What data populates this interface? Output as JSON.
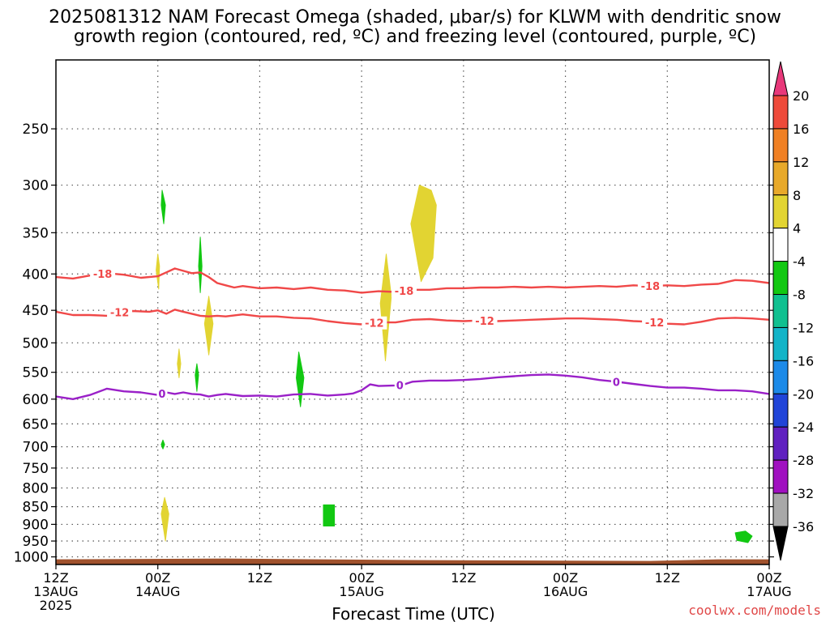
{
  "chart_data": {
    "type": "time-height cross section",
    "title_line1": "2025081312 NAM Forecast Omega (shaded, μbar/s) for KLWM with dendritic snow",
    "title_line2": "growth region (contoured, red, ºC) and freezing level (contoured, purple, ºC)",
    "xlabel": "Forecast Time (UTC)",
    "credit": "coolwx.com/models",
    "x_ticks": [
      {
        "hour": 0,
        "l1": "12Z",
        "l2": "13AUG",
        "l3": "2025"
      },
      {
        "hour": 12,
        "l1": "00Z",
        "l2": "14AUG",
        "l3": ""
      },
      {
        "hour": 24,
        "l1": "12Z",
        "l2": "",
        "l3": ""
      },
      {
        "hour": 36,
        "l1": "00Z",
        "l2": "15AUG",
        "l3": ""
      },
      {
        "hour": 48,
        "l1": "12Z",
        "l2": "",
        "l3": ""
      },
      {
        "hour": 60,
        "l1": "00Z",
        "l2": "16AUG",
        "l3": ""
      },
      {
        "hour": 72,
        "l1": "12Z",
        "l2": "",
        "l3": ""
      },
      {
        "hour": 84,
        "l1": "00Z",
        "l2": "17AUG",
        "l3": ""
      }
    ],
    "x_range_hours": [
      0,
      84
    ],
    "y_ticks_hpa": [
      250,
      300,
      350,
      400,
      450,
      500,
      550,
      600,
      650,
      700,
      750,
      800,
      850,
      900,
      950,
      1000
    ],
    "y_range_hpa": [
      1025,
      200
    ],
    "y_scale": "log-pressure",
    "grid": true,
    "colorbar": {
      "labels": [
        "20",
        "16",
        "12",
        "8",
        "4",
        "-4",
        "-8",
        "-12",
        "-16",
        "-20",
        "-24",
        "-28",
        "-32",
        "-36"
      ],
      "colors": [
        "#e8387a",
        "#ee4a3a",
        "#f08024",
        "#e8a92a",
        "#e2d432",
        "#ffffff",
        "#12c812",
        "#10c090",
        "#12b4c8",
        "#1c8ae8",
        "#2044d8",
        "#6020c0",
        "#a010c0",
        "#a8a8a8",
        "#000000"
      ]
    },
    "series": [
      {
        "name": "-18",
        "color": "#f04848",
        "label_at_hours": [
          5.5,
          41,
          70
        ],
        "points": [
          [
            0,
            404
          ],
          [
            2,
            406
          ],
          [
            4,
            402
          ],
          [
            6,
            399
          ],
          [
            8,
            401
          ],
          [
            10,
            405
          ],
          [
            12,
            403
          ],
          [
            13,
            398
          ],
          [
            14,
            393
          ],
          [
            15,
            396
          ],
          [
            16,
            399
          ],
          [
            17,
            398
          ],
          [
            18,
            404
          ],
          [
            19,
            412
          ],
          [
            20,
            415
          ],
          [
            21,
            418
          ],
          [
            22,
            416
          ],
          [
            24,
            419
          ],
          [
            26,
            418
          ],
          [
            28,
            420
          ],
          [
            30,
            418
          ],
          [
            32,
            421
          ],
          [
            34,
            422
          ],
          [
            36,
            425
          ],
          [
            38,
            423
          ],
          [
            40,
            424
          ],
          [
            42,
            421
          ],
          [
            44,
            421
          ],
          [
            46,
            419
          ],
          [
            48,
            419
          ],
          [
            50,
            418
          ],
          [
            52,
            418
          ],
          [
            54,
            417
          ],
          [
            56,
            418
          ],
          [
            58,
            417
          ],
          [
            60,
            418
          ],
          [
            62,
            417
          ],
          [
            64,
            416
          ],
          [
            66,
            417
          ],
          [
            68,
            415
          ],
          [
            70,
            416
          ],
          [
            72,
            415
          ],
          [
            74,
            416
          ],
          [
            76,
            414
          ],
          [
            78,
            413
          ],
          [
            80,
            408
          ],
          [
            82,
            409
          ],
          [
            84,
            412
          ]
        ]
      },
      {
        "name": "-12",
        "color": "#f04848",
        "label_at_hours": [
          7.5,
          37.5,
          50.5,
          70.5
        ],
        "points": [
          [
            0,
            452
          ],
          [
            2,
            457
          ],
          [
            4,
            457
          ],
          [
            6,
            458
          ],
          [
            7,
            454
          ],
          [
            8,
            452
          ],
          [
            9,
            451
          ],
          [
            11,
            452
          ],
          [
            12,
            450
          ],
          [
            13,
            455
          ],
          [
            14,
            449
          ],
          [
            15,
            452
          ],
          [
            16,
            455
          ],
          [
            17,
            458
          ],
          [
            18,
            459
          ],
          [
            19,
            458
          ],
          [
            20,
            459
          ],
          [
            22,
            456
          ],
          [
            24,
            459
          ],
          [
            26,
            459
          ],
          [
            28,
            461
          ],
          [
            30,
            462
          ],
          [
            32,
            466
          ],
          [
            34,
            469
          ],
          [
            36,
            471
          ],
          [
            38,
            468
          ],
          [
            40,
            468
          ],
          [
            42,
            464
          ],
          [
            44,
            463
          ],
          [
            46,
            465
          ],
          [
            48,
            466
          ],
          [
            50,
            465
          ],
          [
            52,
            466
          ],
          [
            54,
            465
          ],
          [
            56,
            464
          ],
          [
            58,
            463
          ],
          [
            60,
            462
          ],
          [
            62,
            462
          ],
          [
            64,
            463
          ],
          [
            66,
            464
          ],
          [
            68,
            466
          ],
          [
            70,
            467
          ],
          [
            72,
            470
          ],
          [
            74,
            471
          ],
          [
            76,
            467
          ],
          [
            78,
            462
          ],
          [
            80,
            461
          ],
          [
            82,
            462
          ],
          [
            84,
            464
          ]
        ]
      },
      {
        "name": "0",
        "color": "#9a20c8",
        "label_at_hours": [
          12.5,
          40.5,
          66
        ],
        "points": [
          [
            0,
            595
          ],
          [
            2,
            600
          ],
          [
            4,
            592
          ],
          [
            6,
            580
          ],
          [
            8,
            585
          ],
          [
            10,
            587
          ],
          [
            12,
            592
          ],
          [
            13,
            587
          ],
          [
            14,
            590
          ],
          [
            15,
            587
          ],
          [
            16,
            590
          ],
          [
            17,
            591
          ],
          [
            18,
            595
          ],
          [
            19,
            592
          ],
          [
            20,
            590
          ],
          [
            22,
            594
          ],
          [
            24,
            593
          ],
          [
            26,
            595
          ],
          [
            28,
            591
          ],
          [
            30,
            590
          ],
          [
            32,
            593
          ],
          [
            34,
            591
          ],
          [
            35,
            589
          ],
          [
            36,
            583
          ],
          [
            37,
            572
          ],
          [
            38,
            575
          ],
          [
            40,
            574
          ],
          [
            41,
            572
          ],
          [
            42,
            567
          ],
          [
            44,
            565
          ],
          [
            46,
            565
          ],
          [
            48,
            564
          ],
          [
            50,
            562
          ],
          [
            52,
            559
          ],
          [
            54,
            557
          ],
          [
            56,
            555
          ],
          [
            58,
            554
          ],
          [
            60,
            556
          ],
          [
            62,
            559
          ],
          [
            64,
            564
          ],
          [
            66,
            567
          ],
          [
            68,
            571
          ],
          [
            70,
            575
          ],
          [
            72,
            578
          ],
          [
            74,
            578
          ],
          [
            76,
            580
          ],
          [
            78,
            583
          ],
          [
            80,
            583
          ],
          [
            82,
            585
          ],
          [
            84,
            590
          ]
        ]
      }
    ],
    "shaded_regions": [
      {
        "color": "#12c812",
        "value": "-4",
        "points": [
          [
            12.5,
            305
          ],
          [
            12.9,
            320
          ],
          [
            12.7,
            340
          ],
          [
            12.4,
            320
          ]
        ]
      },
      {
        "color": "#e2d432",
        "value": "4",
        "points": [
          [
            12.0,
            375
          ],
          [
            12.2,
            390
          ],
          [
            12.1,
            420
          ],
          [
            11.8,
            395
          ]
        ]
      },
      {
        "color": "#12c812",
        "value": "-4",
        "points": [
          [
            17.0,
            355
          ],
          [
            17.2,
            390
          ],
          [
            17.0,
            425
          ],
          [
            16.8,
            390
          ]
        ]
      },
      {
        "color": "#e2d432",
        "value": "4",
        "points": [
          [
            18.0,
            430
          ],
          [
            18.5,
            470
          ],
          [
            18.0,
            520
          ],
          [
            17.5,
            470
          ]
        ]
      },
      {
        "color": "#e2d432",
        "value": "4",
        "points": [
          [
            14.5,
            510
          ],
          [
            14.7,
            535
          ],
          [
            14.5,
            560
          ],
          [
            14.3,
            535
          ]
        ]
      },
      {
        "color": "#12c812",
        "value": "-4",
        "points": [
          [
            16.6,
            535
          ],
          [
            16.8,
            555
          ],
          [
            16.6,
            585
          ],
          [
            16.4,
            555
          ]
        ]
      },
      {
        "color": "#12c812",
        "value": "-4",
        "points": [
          [
            28.6,
            515
          ],
          [
            29.2,
            560
          ],
          [
            28.8,
            615
          ],
          [
            28.3,
            560
          ]
        ]
      },
      {
        "color": "#e2d432",
        "value": "4",
        "points": [
          [
            38.9,
            375
          ],
          [
            39.5,
            430
          ],
          [
            38.8,
            530
          ],
          [
            38.2,
            440
          ]
        ]
      },
      {
        "color": "#e2d432",
        "value": "4",
        "points": [
          [
            42.8,
            300
          ],
          [
            44.2,
            305
          ],
          [
            44.8,
            320
          ],
          [
            44.4,
            380
          ],
          [
            43.0,
            410
          ],
          [
            41.8,
            340
          ]
        ]
      },
      {
        "color": "#12c812",
        "value": "-4",
        "points": [
          [
            12.6,
            685
          ],
          [
            12.8,
            695
          ],
          [
            12.6,
            705
          ],
          [
            12.4,
            695
          ]
        ]
      },
      {
        "color": "#e2d432",
        "value": "4",
        "points": [
          [
            12.8,
            825
          ],
          [
            13.3,
            870
          ],
          [
            12.9,
            950
          ],
          [
            12.4,
            870
          ]
        ]
      },
      {
        "color": "#12c812",
        "value": "-4",
        "points": [
          [
            31.5,
            845
          ],
          [
            32.8,
            845
          ],
          [
            32.8,
            905
          ],
          [
            31.5,
            905
          ]
        ]
      },
      {
        "color": "#12c812",
        "value": "-4",
        "points": [
          [
            80.0,
            925
          ],
          [
            81.2,
            920
          ],
          [
            82.0,
            935
          ],
          [
            81.5,
            955
          ],
          [
            80.2,
            948
          ]
        ]
      }
    ],
    "terrain": {
      "color": "#a0522d",
      "surface_hpa": 1008
    }
  }
}
